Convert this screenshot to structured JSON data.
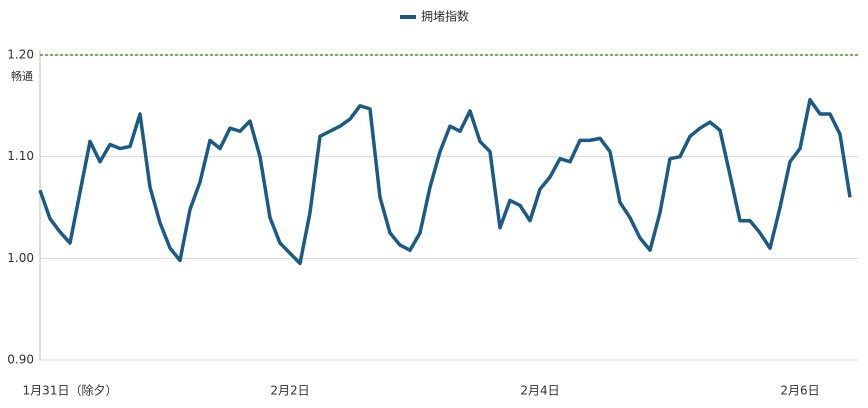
{
  "chart_data": {
    "type": "line",
    "categories": [
      null,
      null,
      null,
      "1月31日（除夕）",
      null,
      null,
      null,
      null,
      null,
      null,
      null,
      null,
      null,
      null,
      null,
      null,
      null,
      null,
      null,
      null,
      null,
      null,
      null,
      null,
      null,
      "2月2日",
      null,
      null,
      null,
      null,
      null,
      null,
      null,
      null,
      null,
      null,
      null,
      null,
      null,
      null,
      null,
      null,
      null,
      null,
      null,
      null,
      null,
      null,
      null,
      null,
      "2月4日",
      null,
      null,
      null,
      null,
      null,
      null,
      null,
      null,
      null,
      null,
      null,
      null,
      null,
      null,
      null,
      null,
      null,
      null,
      null,
      null,
      null,
      null,
      null,
      null,
      null,
      "2月6日",
      null,
      null,
      null,
      null,
      null
    ],
    "series": [
      {
        "name": "拥堵指数",
        "color": "#1a5a85",
        "values": [
          1.067,
          1.039,
          1.026,
          1.015,
          1.065,
          1.115,
          1.095,
          1.112,
          1.108,
          1.11,
          1.142,
          1.07,
          1.035,
          1.01,
          0.998,
          1.048,
          1.075,
          1.116,
          1.108,
          1.128,
          1.125,
          1.135,
          1.1,
          1.04,
          1.015,
          1.005,
          0.995,
          1.045,
          1.12,
          1.125,
          1.13,
          1.137,
          1.15,
          1.147,
          1.06,
          1.025,
          1.013,
          1.008,
          1.025,
          1.07,
          1.105,
          1.13,
          1.125,
          1.145,
          1.115,
          1.105,
          1.03,
          1.057,
          1.052,
          1.037,
          1.068,
          1.08,
          1.098,
          1.095,
          1.116,
          1.116,
          1.118,
          1.105,
          1.055,
          1.04,
          1.02,
          1.008,
          1.045,
          1.098,
          1.1,
          1.12,
          1.128,
          1.134,
          1.126,
          1.082,
          1.037,
          1.037,
          1.025,
          1.01,
          1.05,
          1.095,
          1.108,
          1.156,
          1.142,
          1.142,
          1.122,
          1.06
        ]
      }
    ],
    "ylim": [
      0.9,
      1.2
    ],
    "yticks": [
      {
        "value": 0.9,
        "label": "0.90"
      },
      {
        "value": 1.0,
        "label": "1.00"
      },
      {
        "value": 1.1,
        "label": "1.10"
      },
      {
        "value": 1.2,
        "label": "1.20"
      }
    ],
    "grid": true,
    "reference_line": {
      "value": 1.2,
      "label": "畅通",
      "color": "#4a9a1a"
    },
    "legend": "top"
  }
}
